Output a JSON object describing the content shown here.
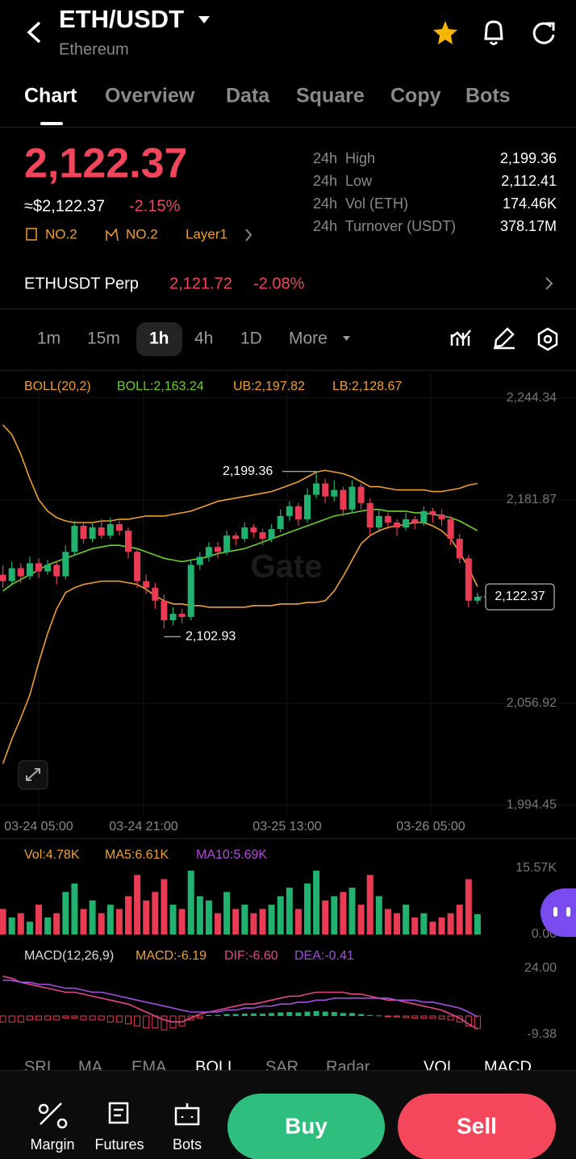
{
  "header": {
    "pair": "ETH/USDT",
    "name": "Ethereum"
  },
  "tabs": [
    "Chart",
    "Overview",
    "Data",
    "Square",
    "Copy",
    "Bots"
  ],
  "price": {
    "last": "2,122.37",
    "usd": "≈$2,122.37",
    "change": "-2.15%",
    "tags": [
      "NO.2",
      "NO.2",
      "Layer1"
    ]
  },
  "stats": [
    {
      "label": "24h  High",
      "value": "2,199.36"
    },
    {
      "label": "24h  Low",
      "value": "2,112.41"
    },
    {
      "label": "24h  Vol (ETH)",
      "value": "174.46K"
    },
    {
      "label": "24h  Turnover (USDT)",
      "value": "378.17M"
    }
  ],
  "perp": {
    "name": "ETHUSDT Perp",
    "price": "2,121.72",
    "change": "-2.08%"
  },
  "timeframes": [
    "1m",
    "15m",
    "1h",
    "4h",
    "1D",
    "More"
  ],
  "chart": {
    "type": "candlestick",
    "legend": {
      "boll": "BOLL(20,2)",
      "mid": "BOLL:2,163.24",
      "ub": "UB:2,197.82",
      "lb": "LB:2,128.67"
    },
    "ylim": [
      1994.45,
      2244.34
    ],
    "yticks": [
      {
        "value": 2244.34,
        "label": "2,244.34"
      },
      {
        "value": 2181.87,
        "label": "2,181.87"
      },
      {
        "value": 2056.92,
        "label": "2,056.92"
      },
      {
        "value": 1994.45,
        "label": "1,994.45"
      }
    ],
    "xlabels": [
      "03-24 05:00",
      "03-24 21:00",
      "03-25 13:00",
      "03-26 05:00"
    ],
    "high_label": {
      "value": 2199.36,
      "label": "2,199.36"
    },
    "low_label": {
      "value": 2102.93,
      "label": "2,102.93"
    },
    "last_label": {
      "value": 2122.37,
      "label": "2,122.37"
    },
    "watermark": "Gate",
    "colors": {
      "up": "#21b26f",
      "down": "#ea3b55",
      "ub": "#f0a030",
      "mid": "#6ccf2c",
      "lb": "#f0a030"
    },
    "candles": [
      [
        2136,
        2142,
        2128,
        2132
      ],
      [
        2132,
        2144,
        2130,
        2140
      ],
      [
        2140,
        2143,
        2131,
        2135
      ],
      [
        2135,
        2147,
        2133,
        2143
      ],
      [
        2143,
        2146,
        2134,
        2138
      ],
      [
        2138,
        2145,
        2136,
        2142
      ],
      [
        2142,
        2144,
        2130,
        2135
      ],
      [
        2135,
        2154,
        2133,
        2150
      ],
      [
        2150,
        2169,
        2148,
        2166
      ],
      [
        2166,
        2168,
        2155,
        2158
      ],
      [
        2158,
        2168,
        2156,
        2165
      ],
      [
        2165,
        2170,
        2158,
        2160
      ],
      [
        2160,
        2171,
        2158,
        2167
      ],
      [
        2167,
        2169,
        2160,
        2163
      ],
      [
        2163,
        2165,
        2146,
        2150
      ],
      [
        2150,
        2152,
        2128,
        2132
      ],
      [
        2132,
        2136,
        2124,
        2128
      ],
      [
        2128,
        2131,
        2115,
        2120
      ],
      [
        2120,
        2124,
        2102.93,
        2108
      ],
      [
        2108,
        2116,
        2105,
        2112
      ],
      [
        2112,
        2115,
        2106,
        2110
      ],
      [
        2110,
        2145,
        2108,
        2142
      ],
      [
        2142,
        2150,
        2139,
        2147
      ],
      [
        2147,
        2156,
        2144,
        2153
      ],
      [
        2153,
        2156,
        2146,
        2150
      ],
      [
        2150,
        2163,
        2148,
        2160
      ],
      [
        2160,
        2162,
        2154,
        2158
      ],
      [
        2158,
        2168,
        2156,
        2165
      ],
      [
        2165,
        2167,
        2159,
        2162
      ],
      [
        2162,
        2164,
        2154,
        2158
      ],
      [
        2158,
        2167,
        2156,
        2164
      ],
      [
        2164,
        2176,
        2162,
        2172
      ],
      [
        2172,
        2181,
        2169,
        2178
      ],
      [
        2178,
        2180,
        2166,
        2170
      ],
      [
        2170,
        2189,
        2168,
        2185
      ],
      [
        2185,
        2199.36,
        2183,
        2192
      ],
      [
        2192,
        2195,
        2180,
        2184
      ],
      [
        2184,
        2194,
        2181,
        2188
      ],
      [
        2188,
        2190,
        2172,
        2176
      ],
      [
        2176,
        2194,
        2174,
        2190
      ],
      [
        2190,
        2192,
        2176,
        2180
      ],
      [
        2180,
        2183,
        2160,
        2165
      ],
      [
        2165,
        2176,
        2162,
        2172
      ],
      [
        2172,
        2174,
        2164,
        2168
      ],
      [
        2168,
        2170,
        2160,
        2165
      ],
      [
        2165,
        2174,
        2163,
        2170
      ],
      [
        2170,
        2172,
        2164,
        2168
      ],
      [
        2168,
        2178,
        2166,
        2175
      ],
      [
        2175,
        2177,
        2168,
        2173
      ],
      [
        2173,
        2176,
        2166,
        2170
      ],
      [
        2170,
        2172,
        2154,
        2158
      ],
      [
        2158,
        2161,
        2143,
        2146
      ],
      [
        2146,
        2148,
        2116,
        2120
      ],
      [
        2120,
        2125,
        2118,
        2122.37
      ]
    ],
    "boll": {
      "ub": [
        2228,
        2222,
        2210,
        2195,
        2182,
        2175,
        2171,
        2169,
        2168,
        2168,
        2168,
        2169,
        2169,
        2170,
        2170,
        2171,
        2172,
        2172,
        2172,
        2173,
        2174,
        2175,
        2177,
        2179,
        2181,
        2182,
        2183,
        2184,
        2185,
        2186,
        2187,
        2189,
        2191,
        2193,
        2196,
        2199,
        2200,
        2199,
        2198,
        2196,
        2193,
        2190,
        2190,
        2189,
        2188,
        2188,
        2188,
        2188,
        2187,
        2187,
        2188,
        2189,
        2191,
        2192
      ],
      "mid": [
        2126,
        2130,
        2133,
        2136,
        2139,
        2142,
        2144,
        2146,
        2148,
        2150,
        2152,
        2153,
        2154,
        2154,
        2153,
        2152,
        2150,
        2148,
        2146,
        2145,
        2144,
        2145,
        2146,
        2147,
        2149,
        2150,
        2151,
        2152,
        2154,
        2156,
        2158,
        2160,
        2162,
        2164,
        2166,
        2168,
        2170,
        2172,
        2173,
        2174,
        2175,
        2176,
        2176,
        2175,
        2175,
        2175,
        2174,
        2174,
        2173,
        2172,
        2171,
        2169,
        2166,
        2163
      ],
      "lb": [
        2020,
        2035,
        2048,
        2062,
        2082,
        2100,
        2115,
        2125,
        2128,
        2130,
        2131,
        2132,
        2132,
        2132,
        2131,
        2130,
        2127,
        2123,
        2120,
        2118,
        2118,
        2117,
        2117,
        2116,
        2116,
        2116,
        2116,
        2116,
        2117,
        2117,
        2117,
        2118,
        2118,
        2118,
        2119,
        2119,
        2120,
        2126,
        2135,
        2145,
        2155,
        2160,
        2163,
        2165,
        2166,
        2167,
        2168,
        2168,
        2166,
        2163,
        2158,
        2150,
        2140,
        2128.67
      ]
    },
    "volume": {
      "legend": {
        "vol": "Vol:4.78K",
        "ma5": "MA5:6.61K",
        "ma10": "MA10:5.69K"
      },
      "ylim": [
        0,
        15570
      ],
      "yticks": [
        {
          "value": 15570,
          "label": "15.57K"
        },
        {
          "value": 0,
          "label": "0.00"
        }
      ],
      "values": [
        6000,
        4000,
        5000,
        3000,
        7000,
        4000,
        5000,
        10000,
        12000,
        6000,
        8000,
        5000,
        7000,
        6000,
        9000,
        14000,
        8000,
        10000,
        13000,
        7000,
        6000,
        15000,
        9000,
        8000,
        5000,
        10000,
        6000,
        7000,
        5000,
        6000,
        7000,
        9000,
        11000,
        6000,
        12000,
        15000,
        8000,
        9000,
        10000,
        11000,
        7000,
        14000,
        9000,
        6000,
        5000,
        7000,
        4000,
        5000,
        3000,
        4000,
        5000,
        7000,
        13000,
        4780
      ]
    },
    "macd": {
      "legend": {
        "name": "MACD(12,26,9)",
        "macd": "MACD:-6.19",
        "dif": "DIF:-6.60",
        "dea": "DEA:-0.41"
      },
      "ylim": [
        -9.38,
        24
      ],
      "yticks": [
        {
          "value": 24,
          "label": "24.00"
        },
        -9.38
      ],
      "colors": {
        "dif": "#e6468c",
        "dea": "#a24ee0"
      },
      "hist": [
        -3,
        -3,
        -3,
        -2,
        -2,
        -2,
        -2,
        -1,
        -1,
        -2,
        -2,
        -2,
        -3,
        -3,
        -4,
        -5,
        -6,
        -6,
        -7,
        -6,
        -5,
        -2,
        -1,
        0.5,
        0.5,
        1,
        1,
        1.2,
        1.3,
        1.2,
        1.5,
        1.8,
        2,
        1.8,
        2.2,
        2.5,
        2.2,
        2,
        1.5,
        1.5,
        1,
        0.5,
        0.3,
        -0.3,
        -0.5,
        -0.8,
        -1,
        -1,
        -1.2,
        -1.5,
        -2,
        -3,
        -5,
        -6.19
      ],
      "dif": [
        20,
        19,
        17,
        16,
        15,
        14,
        13,
        12,
        12,
        11,
        10,
        9,
        8,
        7,
        6,
        4,
        2,
        0,
        -2,
        -3,
        -3,
        -1,
        1,
        2,
        3,
        4,
        5,
        6,
        6,
        7,
        8,
        9,
        10,
        10,
        11,
        12,
        12,
        12,
        12,
        11,
        11,
        10,
        9,
        8,
        8,
        7,
        6,
        5,
        4,
        3,
        1,
        -1,
        -4,
        -6.6
      ],
      "dea": [
        18,
        18,
        17,
        17,
        16,
        16,
        15,
        14,
        14,
        13,
        12,
        12,
        11,
        10,
        9,
        8,
        7,
        6,
        5,
        4,
        3,
        2,
        2,
        2,
        2,
        3,
        3,
        4,
        4,
        5,
        5,
        6,
        6,
        7,
        7,
        8,
        8,
        9,
        9,
        9,
        9,
        9,
        9,
        9,
        8,
        8,
        8,
        7,
        7,
        6,
        5,
        4,
        2,
        -0.41
      ]
    }
  },
  "indicators": [
    "SRI",
    "MA",
    "EMA",
    "BOLL",
    "SAR",
    "Radar",
    "VOL",
    "MACD"
  ],
  "footer": {
    "items": [
      "Margin",
      "Futures",
      "Bots"
    ],
    "buy": "Buy",
    "sell": "Sell"
  }
}
